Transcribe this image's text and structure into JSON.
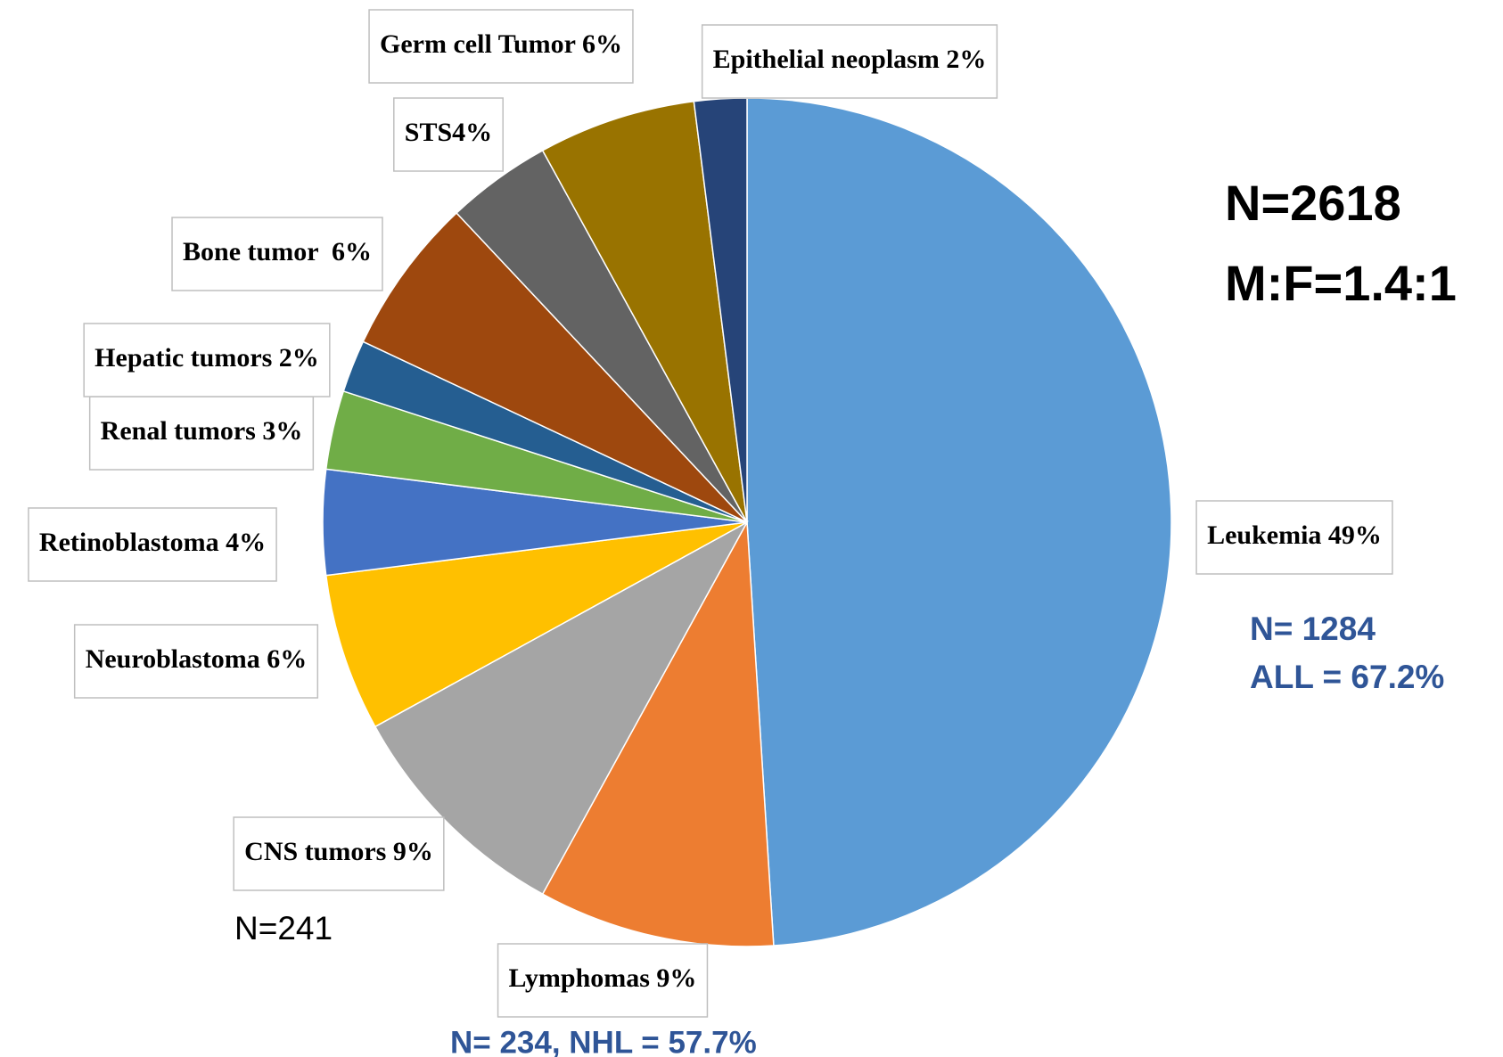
{
  "chart_data": {
    "type": "pie",
    "categories": [
      "Leukemia 49%",
      "Lymphomas 9%",
      "CNS tumors 9%",
      "Neuroblastoma 6%",
      "Retinoblastoma 4%",
      "Renal tumors 3%",
      "Hepatic tumors 2%",
      "Bone tumor  6%",
      "STS4%",
      "Germ cell Tumor 6%",
      "Epithelial neoplasm 2%"
    ],
    "values": [
      49,
      9,
      9,
      6,
      4,
      3,
      2,
      6,
      4,
      6,
      2
    ],
    "colors": [
      "#5b9bd5",
      "#ed7d31",
      "#a5a5a5",
      "#ffc000",
      "#4472c4",
      "#70ad47",
      "#255e91",
      "#9e480e",
      "#636363",
      "#997300",
      "#264478"
    ],
    "annotations": [
      "N=2618",
      "M:F=1.4:1",
      "N= 1284",
      "ALL = 67.2%",
      "N=241",
      "N= 234, NHL = 57.7%"
    ]
  }
}
